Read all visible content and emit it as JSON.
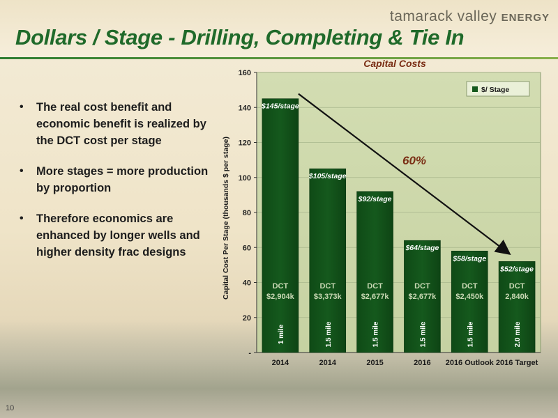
{
  "brand": {
    "name": "tamarack valley",
    "suffix": "ENERGY"
  },
  "slide": {
    "title": "Dollars / Stage - Drilling, Completing & Tie In",
    "page_number": "10"
  },
  "bullets": [
    "The real cost benefit and economic benefit is realized by the DCT cost per stage",
    "More stages = more production by proportion",
    "Therefore economics are enhanced by longer wells and higher density frac designs"
  ],
  "colors": {
    "bar": "#15591d",
    "plot_bg": "#c6d2a2",
    "title_green": "#1f6a2a",
    "chart_title": "#7a2e14"
  },
  "chart_data": {
    "type": "bar",
    "title": "Capital Costs",
    "ylabel": "Capital Cost Per Stage (thousands $ per stage)",
    "xlabel": "",
    "ylim": [
      0,
      160
    ],
    "yticks": [
      0,
      20,
      40,
      60,
      80,
      100,
      120,
      140,
      160
    ],
    "ytick_labels": [
      "-",
      "20",
      "40",
      "60",
      "80",
      "100",
      "120",
      "140",
      "160"
    ],
    "categories": [
      "2014",
      "2014",
      "2015",
      "2016",
      "2016 Outlook",
      "2016 Target"
    ],
    "series": [
      {
        "name": "$/ Stage",
        "values": [
          145,
          105,
          92,
          64,
          58,
          52
        ]
      }
    ],
    "value_labels": [
      "$145/stage",
      "$105/stage",
      "$92/stage",
      "$64/stage",
      "$58/stage",
      "$52/stage"
    ],
    "dct_labels": [
      "DCT",
      "DCT",
      "DCT",
      "DCT",
      "DCT",
      "DCT"
    ],
    "dct_costs": [
      "$2,904k",
      "$3,373k",
      "$2,677k",
      "$2,677k",
      "$2,450k",
      "2,840k"
    ],
    "well_lengths": [
      "1 mile",
      "1.5 mile",
      "1.5 mile",
      "1.5 mile",
      "1.5 mile",
      "2.0 mile"
    ],
    "annotation": "60%",
    "legend_position": "top-right",
    "grid": true
  }
}
